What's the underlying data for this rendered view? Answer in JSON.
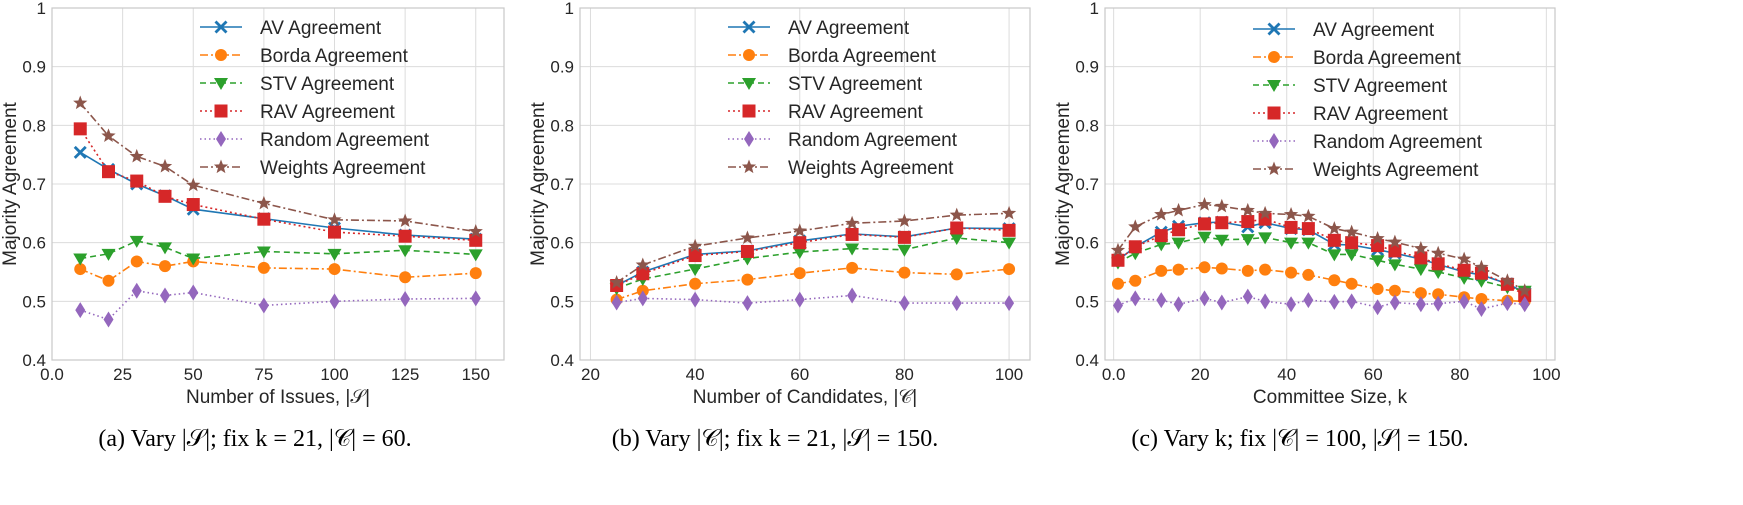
{
  "colors": {
    "av": "#1f77b4",
    "borda": "#ff7f0e",
    "stv": "#2ca02c",
    "rav": "#d62728",
    "random": "#9467bd",
    "weights": "#8c564b",
    "grid": "#dcdcdc",
    "spine": "#c8c8c8"
  },
  "chart_data": [
    {
      "type": "line",
      "xlabel": "Number of Issues, |𝒮|",
      "ylabel": "Majority Agreement",
      "caption": "(a) Vary |𝒮|; fix k = 21, |𝒞| = 60.",
      "xlim": [
        0,
        160
      ],
      "ylim": [
        0.4,
        1.0
      ],
      "xticks": [
        0,
        25,
        50,
        75,
        100,
        125,
        150
      ],
      "yticks": [
        0.4,
        0.5,
        0.6,
        0.7,
        0.8,
        0.9,
        1.0
      ],
      "x": [
        10,
        20,
        30,
        40,
        50,
        75,
        100,
        125,
        150
      ],
      "series": [
        {
          "name": "AV Agreement",
          "key": "av",
          "values": [
            0.754,
            0.725,
            0.7,
            0.68,
            0.657,
            0.641,
            0.625,
            0.613,
            0.606
          ]
        },
        {
          "name": "Borda Agreement",
          "key": "borda",
          "values": [
            0.555,
            0.535,
            0.568,
            0.56,
            0.568,
            0.557,
            0.555,
            0.541,
            0.548
          ]
        },
        {
          "name": "STV Agreement",
          "key": "stv",
          "values": [
            0.573,
            0.581,
            0.603,
            0.592,
            0.573,
            0.585,
            0.581,
            0.587,
            0.58
          ]
        },
        {
          "name": "RAV Agreement",
          "key": "rav",
          "values": [
            0.794,
            0.721,
            0.705,
            0.679,
            0.665,
            0.64,
            0.618,
            0.611,
            0.604
          ]
        },
        {
          "name": "Random Agreement",
          "key": "random",
          "values": [
            0.485,
            0.469,
            0.518,
            0.51,
            0.515,
            0.493,
            0.5,
            0.504,
            0.505
          ]
        },
        {
          "name": "Weights Agreement",
          "key": "weights",
          "values": [
            0.838,
            0.782,
            0.747,
            0.73,
            0.698,
            0.667,
            0.639,
            0.637,
            0.619
          ]
        }
      ]
    },
    {
      "type": "line",
      "xlabel": "Number of Candidates, |𝒞|",
      "ylabel": "Majority Agreement",
      "caption": "(b) Vary |𝒞|; fix k = 21, |𝒮| = 150.",
      "xlim": [
        18,
        104
      ],
      "ylim": [
        0.4,
        1.0
      ],
      "xticks": [
        20,
        40,
        60,
        80,
        100
      ],
      "yticks": [
        0.4,
        0.5,
        0.6,
        0.7,
        0.8,
        0.9,
        1.0
      ],
      "x": [
        25,
        30,
        40,
        50,
        60,
        70,
        80,
        90,
        100
      ],
      "series": [
        {
          "name": "AV Agreement",
          "key": "av",
          "values": [
            0.527,
            0.55,
            0.58,
            0.586,
            0.603,
            0.615,
            0.61,
            0.625,
            0.624
          ]
        },
        {
          "name": "Borda Agreement",
          "key": "borda",
          "values": [
            0.503,
            0.518,
            0.53,
            0.537,
            0.548,
            0.557,
            0.549,
            0.546,
            0.555
          ]
        },
        {
          "name": "STV Agreement",
          "key": "stv",
          "values": [
            0.522,
            0.538,
            0.555,
            0.573,
            0.584,
            0.59,
            0.588,
            0.608,
            0.6
          ]
        },
        {
          "name": "RAV Agreement",
          "key": "rav",
          "values": [
            0.527,
            0.547,
            0.578,
            0.585,
            0.6,
            0.614,
            0.609,
            0.625,
            0.621
          ]
        },
        {
          "name": "Random Agreement",
          "key": "random",
          "values": [
            0.498,
            0.505,
            0.503,
            0.497,
            0.503,
            0.51,
            0.497,
            0.497,
            0.497
          ]
        },
        {
          "name": "Weights Agreement",
          "key": "weights",
          "values": [
            0.532,
            0.562,
            0.594,
            0.608,
            0.62,
            0.633,
            0.637,
            0.647,
            0.65
          ]
        }
      ]
    },
    {
      "type": "line",
      "xlabel": "Committee Size, k",
      "ylabel": "Majority Agreement",
      "caption": "(c) Vary k; fix |𝒞| = 100, |𝒮| = 150.",
      "xlim": [
        -2,
        102
      ],
      "ylim": [
        0.4,
        1.0
      ],
      "xticks": [
        0,
        20,
        40,
        60,
        80,
        100
      ],
      "yticks": [
        0.4,
        0.5,
        0.6,
        0.7,
        0.8,
        0.9,
        1.0
      ],
      "x": [
        1,
        5,
        11,
        15,
        21,
        25,
        31,
        35,
        41,
        45,
        51,
        55,
        61,
        65,
        71,
        75,
        81,
        85,
        91,
        95
      ],
      "series": [
        {
          "name": "AV Agreement",
          "key": "av",
          "values": [
            0.57,
            0.593,
            0.618,
            0.628,
            0.634,
            0.635,
            0.627,
            0.634,
            0.624,
            0.622,
            0.597,
            0.596,
            0.588,
            0.582,
            0.572,
            0.563,
            0.55,
            0.545,
            0.53,
            0.515
          ]
        },
        {
          "name": "Borda Agreement",
          "key": "borda",
          "values": [
            0.53,
            0.535,
            0.552,
            0.554,
            0.558,
            0.556,
            0.552,
            0.554,
            0.549,
            0.545,
            0.536,
            0.53,
            0.521,
            0.518,
            0.514,
            0.512,
            0.507,
            0.504,
            0.501,
            0.5
          ]
        },
        {
          "name": "STV Agreement",
          "key": "stv",
          "values": [
            0.566,
            0.582,
            0.597,
            0.6,
            0.61,
            0.605,
            0.606,
            0.609,
            0.6,
            0.6,
            0.58,
            0.58,
            0.57,
            0.563,
            0.555,
            0.55,
            0.54,
            0.535,
            0.524,
            0.518
          ]
        },
        {
          "name": "RAV Agreement",
          "key": "rav",
          "values": [
            0.57,
            0.593,
            0.612,
            0.622,
            0.632,
            0.634,
            0.636,
            0.64,
            0.626,
            0.624,
            0.604,
            0.6,
            0.595,
            0.586,
            0.574,
            0.564,
            0.553,
            0.548,
            0.529,
            0.51
          ]
        },
        {
          "name": "Random Agreement",
          "key": "random",
          "values": [
            0.493,
            0.505,
            0.502,
            0.495,
            0.505,
            0.498,
            0.508,
            0.5,
            0.495,
            0.502,
            0.499,
            0.5,
            0.49,
            0.498,
            0.495,
            0.496,
            0.5,
            0.487,
            0.497,
            0.495
          ]
        },
        {
          "name": "Weights Agreement",
          "key": "weights",
          "values": [
            0.587,
            0.627,
            0.648,
            0.655,
            0.665,
            0.662,
            0.655,
            0.65,
            0.648,
            0.645,
            0.624,
            0.618,
            0.607,
            0.601,
            0.59,
            0.582,
            0.572,
            0.558,
            0.535,
            0.518
          ]
        }
      ]
    }
  ]
}
